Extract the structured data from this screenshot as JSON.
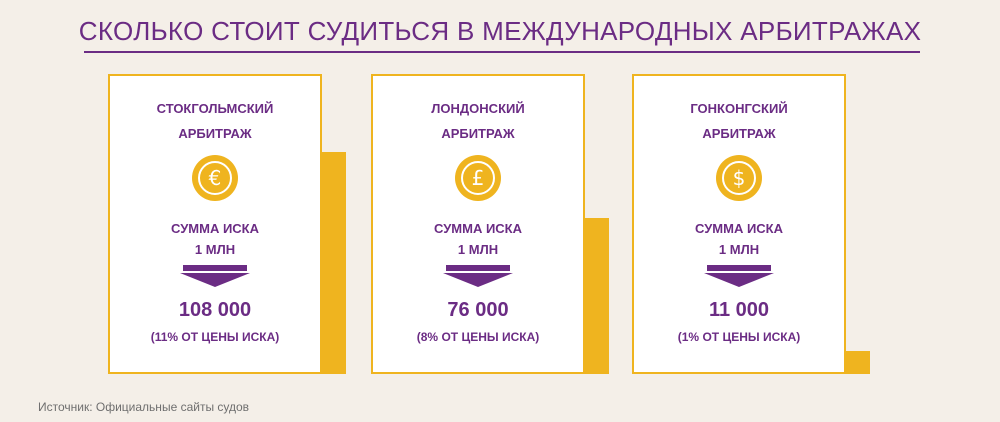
{
  "title": "СКОЛЬКО СТОИТ СУДИТЬСЯ В МЕЖДУНАРОДНЫХ АРБИТРАЖАХ",
  "colors": {
    "accent": "#6b2c84",
    "gold": "#efb41f",
    "card": "#ffffff",
    "background": "#f4efe8"
  },
  "source": "Источник: Официальные сайты судов",
  "chart_data": {
    "type": "bar",
    "title": "СКОЛЬКО СТОИТ СУДИТЬСЯ В МЕЖДУНАРОДНЫХ АРБИТРАЖАХ",
    "categories": [
      "СТОКГОЛЬМСКИЙ АРБИТРАЖ",
      "ЛОНДОНСКИЙ АРБИТРАЖ",
      "ГОНКОНГСКИЙ АРБИТРАЖ"
    ],
    "values": [
      108000,
      76000,
      11000
    ],
    "claim_amount": 1000000,
    "ylim": [
      0,
      110000
    ],
    "grid": false,
    "legend": "none"
  },
  "panels": [
    {
      "name_line1": "СТОКГОЛЬМСКИЙ",
      "name_line2": "АРБИТРАЖ",
      "currency_icon": "euro-coin-icon",
      "currency_symbol": "€",
      "claim_line1": "СУММА ИСКА",
      "claim_line2": "1 МЛН",
      "cost": "108 000",
      "percent": "(11% ОТ ЦЕНЫ ИСКА)"
    },
    {
      "name_line1": "ЛОНДОНСКИЙ",
      "name_line2": "АРБИТРАЖ",
      "currency_icon": "pound-coin-icon",
      "currency_symbol": "£",
      "claim_line1": "СУММА ИСКА",
      "claim_line2": "1 МЛН",
      "cost": "76 000",
      "percent": "(8% ОТ ЦЕНЫ ИСКА)"
    },
    {
      "name_line1": "ГОНКОНГСКИЙ",
      "name_line2": "АРБИТРАЖ",
      "currency_icon": "dollar-coin-icon",
      "currency_symbol": "$",
      "claim_line1": "СУММА ИСКА",
      "claim_line2": "1 МЛН",
      "cost": "11 000",
      "percent": "(1% ОТ ЦЕНЫ ИСКА)"
    }
  ]
}
